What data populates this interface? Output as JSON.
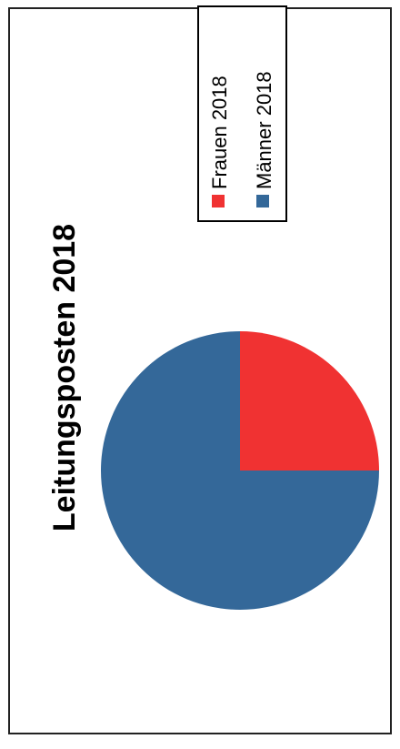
{
  "chart_data": {
    "type": "pie",
    "title": "Leitungsposten 2018",
    "legend_placement": "top-right",
    "slices": [
      {
        "label": "Frauen 2018",
        "value": 25,
        "color": "#f03232"
      },
      {
        "label": "Männer 2018",
        "value": 75,
        "color": "#346899"
      }
    ]
  }
}
